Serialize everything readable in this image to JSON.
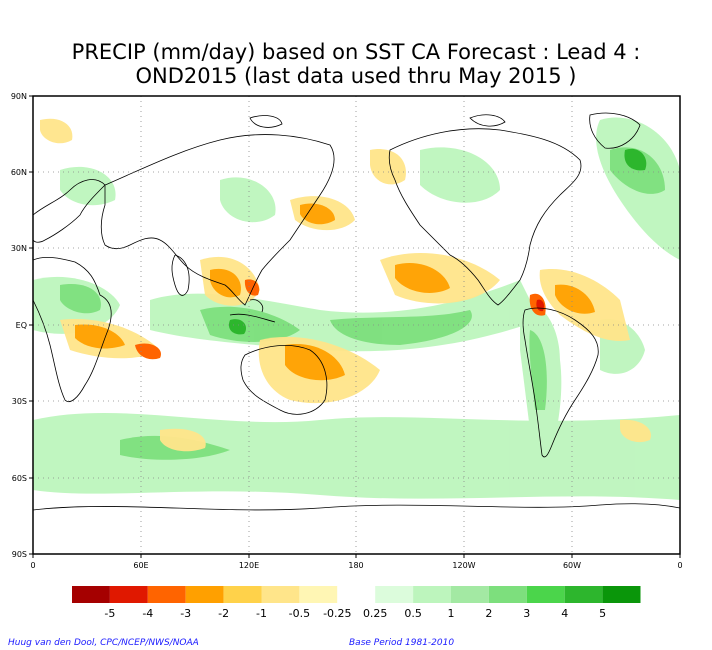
{
  "title": {
    "line1": "PRECIP (mm/day) based on SST CA Forecast : Lead 4 :",
    "line2": "OND2015 (last data used thru May 2015 )"
  },
  "axes": {
    "lat_labels": [
      "90N",
      "60N",
      "30N",
      "EQ",
      "30S",
      "60S",
      "90S"
    ],
    "lon_labels": [
      "0",
      "60E",
      "120E",
      "180",
      "120W",
      "60W",
      "0"
    ]
  },
  "legend": {
    "labels": [
      "-5",
      "-4",
      "-3",
      "-2",
      "-1",
      "-0.5",
      "-0.25",
      "0.25",
      "0.5",
      "1",
      "2",
      "3",
      "4",
      "5"
    ],
    "colors": [
      "#a50000",
      "#e01800",
      "#ff6400",
      "#ffa000",
      "#ffd24a",
      "#ffe58a",
      "#fff6b4",
      "#ffffff",
      "#dcfcdc",
      "#bdf5bd",
      "#a3e9a3",
      "#7ddf7d",
      "#4bd54b",
      "#2db62d",
      "#0a960a"
    ]
  },
  "credits": {
    "left": "Huug van den Dool, CPC/NCEP/NWS/NOAA",
    "right": "Base Period 1981-2010"
  }
}
